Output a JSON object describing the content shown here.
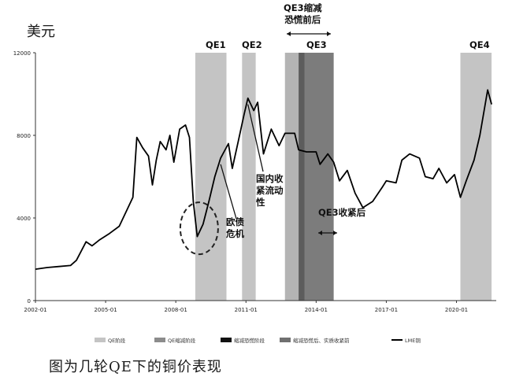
{
  "unit_label": "美元",
  "caption": "图为几轮QE下的铜价表现",
  "top_annotation": "QE3缩减\n恐慌前后",
  "chart_data": {
    "type": "line",
    "xlabel": "",
    "ylabel": "",
    "ylim": [
      0,
      12000
    ],
    "y_ticks": [
      0,
      4000,
      8000,
      12000
    ],
    "x_ticks": [
      "2002-01",
      "2005-01",
      "2008-01",
      "2011-01",
      "2014-01",
      "2017-01",
      "2020-01"
    ],
    "grid": false,
    "legend_position": "bottom",
    "series": [
      {
        "name": "LME铜",
        "points": [
          [
            "2002-01",
            1520
          ],
          [
            "2002-07",
            1600
          ],
          [
            "2003-01",
            1650
          ],
          [
            "2003-07",
            1700
          ],
          [
            "2003-10",
            1950
          ],
          [
            "2004-03",
            2850
          ],
          [
            "2004-06",
            2650
          ],
          [
            "2004-10",
            2950
          ],
          [
            "2005-03",
            3250
          ],
          [
            "2005-08",
            3600
          ],
          [
            "2005-12",
            4400
          ],
          [
            "2006-03",
            5000
          ],
          [
            "2006-05",
            7900
          ],
          [
            "2006-08",
            7400
          ],
          [
            "2006-11",
            7000
          ],
          [
            "2007-01",
            5600
          ],
          [
            "2007-03",
            6800
          ],
          [
            "2007-05",
            7700
          ],
          [
            "2007-08",
            7300
          ],
          [
            "2007-10",
            8000
          ],
          [
            "2007-12",
            6700
          ],
          [
            "2008-03",
            8300
          ],
          [
            "2008-06",
            8500
          ],
          [
            "2008-08",
            7900
          ],
          [
            "2008-10",
            4800
          ],
          [
            "2008-12",
            3100
          ],
          [
            "2009-03",
            3700
          ],
          [
            "2009-06",
            4800
          ],
          [
            "2009-09",
            6000
          ],
          [
            "2009-12",
            6900
          ],
          [
            "2010-04",
            7600
          ],
          [
            "2010-06",
            6400
          ],
          [
            "2010-09",
            7700
          ],
          [
            "2010-12",
            9000
          ],
          [
            "2011-02",
            9800
          ],
          [
            "2011-05",
            9200
          ],
          [
            "2011-07",
            9600
          ],
          [
            "2011-10",
            7100
          ],
          [
            "2012-02",
            8300
          ],
          [
            "2012-06",
            7500
          ],
          [
            "2012-09",
            8100
          ],
          [
            "2013-02",
            8100
          ],
          [
            "2013-04",
            7300
          ],
          [
            "2013-08",
            7200
          ],
          [
            "2014-01",
            7200
          ],
          [
            "2014-03",
            6600
          ],
          [
            "2014-07",
            7100
          ],
          [
            "2014-10",
            6700
          ],
          [
            "2015-01",
            5800
          ],
          [
            "2015-05",
            6300
          ],
          [
            "2015-09",
            5200
          ],
          [
            "2016-01",
            4500
          ],
          [
            "2016-06",
            4800
          ],
          [
            "2016-11",
            5500
          ],
          [
            "2017-01",
            5800
          ],
          [
            "2017-06",
            5700
          ],
          [
            "2017-09",
            6800
          ],
          [
            "2018-01",
            7100
          ],
          [
            "2018-06",
            6900
          ],
          [
            "2018-09",
            6000
          ],
          [
            "2019-01",
            5900
          ],
          [
            "2019-04",
            6400
          ],
          [
            "2019-08",
            5700
          ],
          [
            "2019-12",
            6100
          ],
          [
            "2020-03",
            5000
          ],
          [
            "2020-06",
            5800
          ],
          [
            "2020-10",
            6800
          ],
          [
            "2021-01",
            8000
          ],
          [
            "2021-05",
            10200
          ],
          [
            "2021-07",
            9500
          ]
        ]
      }
    ],
    "shaded_periods": [
      {
        "label": "QE1",
        "start": "2008-11",
        "end": "2010-03",
        "shade": "#c4c4c4"
      },
      {
        "label": "QE2",
        "start": "2010-11",
        "end": "2011-06",
        "shade": "#c4c4c4"
      },
      {
        "label": "QE3",
        "start": "2012-09",
        "end": "2013-04",
        "shade": "#b4b4b4"
      },
      {
        "label": "",
        "start": "2013-04",
        "end": "2013-07",
        "shade": "#5c5c5c"
      },
      {
        "label": "",
        "start": "2013-07",
        "end": "2014-10",
        "shade": "#7c7c7c"
      },
      {
        "label": "QE4",
        "start": "2020-03",
        "end": "2021-07",
        "shade": "#c4c4c4"
      }
    ],
    "annotations": [
      {
        "id": "euro-debt",
        "text": "欧债\n危机"
      },
      {
        "id": "domestic-tightening",
        "text": "国内收\n紧流动\n性"
      },
      {
        "id": "qe3-after",
        "text": "QE3收紧后"
      }
    ],
    "legend": [
      {
        "label": "QE阶段",
        "color": "#c4c4c4"
      },
      {
        "label": "QE缩减阶段",
        "color": "#8c8c8c"
      },
      {
        "label": "缩减恐慌阶段",
        "color": "#111111"
      },
      {
        "label": "缩减恐慌后、实质收紧前",
        "color": "#707070"
      },
      {
        "label": "LME铜",
        "color": "#000000",
        "kind": "line"
      }
    ]
  }
}
